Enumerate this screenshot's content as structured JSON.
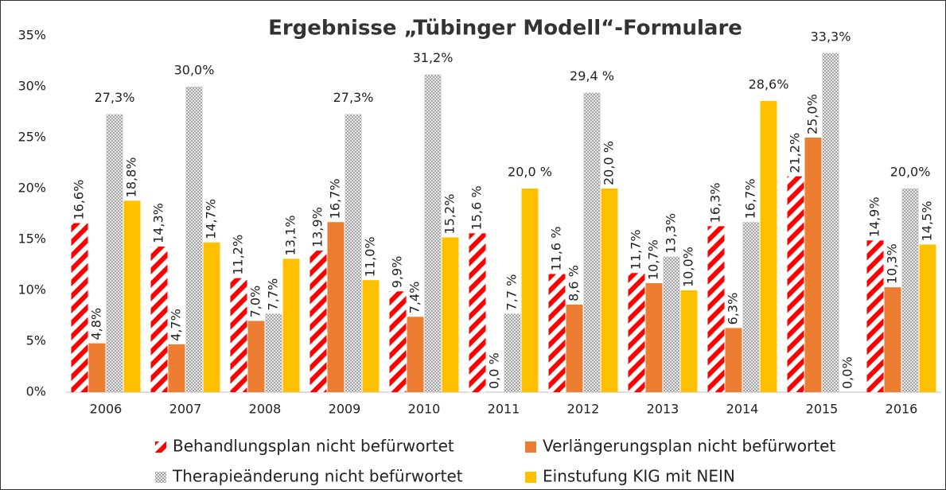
{
  "chart_data": {
    "type": "bar",
    "title": "Ergebnisse „Tübinger Modell“-Formulare",
    "categories": [
      "2006",
      "2007",
      "2008",
      "2009",
      "2010",
      "2011",
      "2012",
      "2013",
      "2014",
      "2015",
      "2016"
    ],
    "series": [
      {
        "name": "Behandlungsplan nicht befürwortet",
        "color": "#ff0000",
        "pattern": "stripes",
        "values": [
          16.6,
          14.3,
          11.2,
          13.9,
          9.9,
          15.6,
          11.6,
          11.7,
          16.3,
          21.2,
          14.9
        ],
        "value_labels": [
          "16,6%",
          "14,3%",
          "11,2%",
          "13,9%",
          "9,9%",
          "15,6 %",
          "11,6 %",
          "11,7%",
          "16,3%",
          "21,2%",
          "14,9%"
        ]
      },
      {
        "name": "Verlängerungsplan nicht befürwortet",
        "color": "#ed7d31",
        "pattern": "solid",
        "values": [
          4.8,
          4.7,
          7.0,
          16.7,
          7.4,
          0.0,
          8.6,
          10.7,
          6.3,
          25.0,
          10.3
        ],
        "value_labels": [
          "4,8%",
          "4,7%",
          "7,0%",
          "16,7%",
          "7,4%",
          "0,0 %",
          "8,6 %",
          "10,7%",
          "6,3%",
          "25,0%",
          "10,3%"
        ]
      },
      {
        "name": "Therapieänderung nicht befürwortet",
        "color": "#bfbfbf",
        "pattern": "dots",
        "values": [
          27.3,
          30.0,
          7.7,
          27.3,
          31.2,
          7.7,
          29.4,
          13.3,
          16.7,
          33.3,
          20.0
        ],
        "value_labels": [
          "27,3%",
          "30,0%",
          "7,7%",
          "27,3%",
          "31,2%",
          "7,7 %",
          "29,4 %",
          "13,3%",
          "16,7%",
          "33,3%",
          "20,0%"
        ]
      },
      {
        "name": "Einstufung KIG mit NEIN",
        "color": "#ffc000",
        "pattern": "solid",
        "values": [
          18.8,
          14.7,
          13.1,
          11.0,
          15.2,
          20.0,
          20.0,
          10.0,
          28.6,
          0.0,
          14.5
        ],
        "value_labels": [
          "18,8%",
          "14,7%",
          "13,1%",
          "11,0%",
          "15,2%",
          "20,0 %",
          "20,0 %",
          "10,0%",
          "28,6%",
          "0,0%",
          "14,5%"
        ]
      }
    ],
    "ylim": [
      0,
      35
    ],
    "yticks": [
      {
        "value": 0,
        "label": "0%"
      },
      {
        "value": 5,
        "label": "5%"
      },
      {
        "value": 10,
        "label": "10%"
      },
      {
        "value": 15,
        "label": "15%"
      },
      {
        "value": 20,
        "label": "20%"
      },
      {
        "value": 25,
        "label": "25%"
      },
      {
        "value": 30,
        "label": "30%"
      },
      {
        "value": 35,
        "label": "35%"
      }
    ],
    "grid": false
  }
}
